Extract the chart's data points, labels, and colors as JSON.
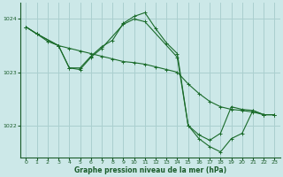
{
  "bg_color": "#cce8e8",
  "grid_color": "#aacfcf",
  "line_color": "#1a6b2a",
  "text_color": "#1a5c2a",
  "xlabel": "Graphe pression niveau de la mer (hPa)",
  "ylim": [
    1021.4,
    1024.3
  ],
  "xlim": [
    -0.5,
    23.5
  ],
  "yticks": [
    1022,
    1023,
    1024
  ],
  "xticks": [
    0,
    1,
    2,
    3,
    4,
    5,
    6,
    7,
    8,
    9,
    10,
    11,
    12,
    13,
    14,
    15,
    16,
    17,
    18,
    19,
    20,
    21,
    22,
    23
  ],
  "series1": [
    [
      0,
      1023.85
    ],
    [
      1,
      1023.72
    ],
    [
      2,
      1023.58
    ],
    [
      3,
      1023.5
    ],
    [
      4,
      1023.08
    ],
    [
      5,
      1023.08
    ],
    [
      6,
      1023.3
    ],
    [
      7,
      1023.48
    ],
    [
      8,
      1023.6
    ],
    [
      9,
      1023.92
    ],
    [
      10,
      1024.05
    ],
    [
      11,
      1024.12
    ],
    [
      12,
      1023.82
    ],
    [
      13,
      1023.55
    ],
    [
      14,
      1023.35
    ],
    [
      15,
      1022.0
    ],
    [
      16,
      1021.82
    ],
    [
      17,
      1021.72
    ],
    [
      18,
      1021.85
    ],
    [
      19,
      1022.35
    ],
    [
      20,
      1022.3
    ],
    [
      21,
      1022.28
    ],
    [
      22,
      1022.2
    ],
    [
      23,
      1022.2
    ]
  ],
  "series2": [
    [
      0,
      1023.85
    ],
    [
      1,
      1023.72
    ],
    [
      3,
      1023.5
    ],
    [
      4,
      1023.45
    ],
    [
      5,
      1023.4
    ],
    [
      6,
      1023.35
    ],
    [
      7,
      1023.3
    ],
    [
      8,
      1023.25
    ],
    [
      9,
      1023.2
    ],
    [
      10,
      1023.18
    ],
    [
      11,
      1023.15
    ],
    [
      12,
      1023.1
    ],
    [
      13,
      1023.05
    ],
    [
      14,
      1023.0
    ],
    [
      15,
      1022.78
    ],
    [
      16,
      1022.6
    ],
    [
      17,
      1022.45
    ],
    [
      18,
      1022.35
    ],
    [
      19,
      1022.3
    ],
    [
      20,
      1022.28
    ],
    [
      21,
      1022.25
    ],
    [
      22,
      1022.2
    ],
    [
      23,
      1022.2
    ]
  ],
  "series3": [
    [
      0,
      1023.85
    ],
    [
      1,
      1023.72
    ],
    [
      3,
      1023.5
    ],
    [
      4,
      1023.08
    ],
    [
      5,
      1023.05
    ],
    [
      6,
      1023.28
    ],
    [
      7,
      1023.45
    ],
    [
      9,
      1023.9
    ],
    [
      10,
      1024.0
    ],
    [
      11,
      1023.95
    ],
    [
      14,
      1023.28
    ],
    [
      15,
      1022.0
    ],
    [
      16,
      1021.75
    ],
    [
      17,
      1021.6
    ],
    [
      18,
      1021.5
    ],
    [
      19,
      1021.75
    ],
    [
      20,
      1021.85
    ],
    [
      21,
      1022.28
    ],
    [
      22,
      1022.2
    ],
    [
      23,
      1022.2
    ]
  ]
}
